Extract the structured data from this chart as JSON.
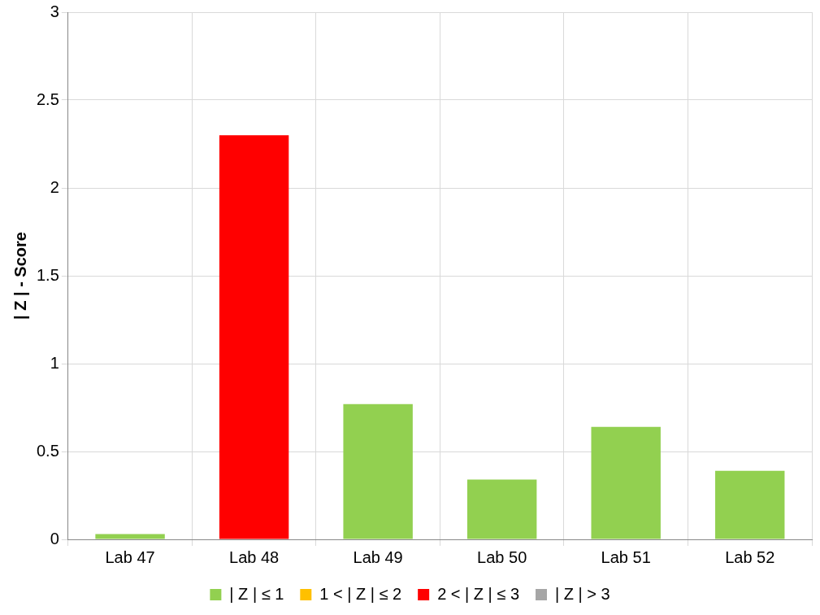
{
  "chart_data": {
    "type": "bar",
    "ylabel": "| Z | - Score",
    "categories": [
      "Lab 47",
      "Lab 48",
      "Lab 49",
      "Lab 50",
      "Lab 51",
      "Lab 52"
    ],
    "stacked": true,
    "series": [
      {
        "name": "| Z | ≤ 1",
        "color": "#92d050",
        "values": [
          0.03,
          null,
          0.77,
          0.34,
          0.64,
          0.39
        ]
      },
      {
        "name": "1 < | Z | ≤ 2",
        "color": "#ffc000",
        "values": [
          null,
          null,
          null,
          null,
          null,
          null
        ]
      },
      {
        "name": "2 < | Z | ≤ 3",
        "color": "#ff0000",
        "values": [
          null,
          2.3,
          null,
          null,
          null,
          null
        ]
      },
      {
        "name": "| Z | > 3",
        "color": "#a6a6a6",
        "values": [
          null,
          null,
          null,
          null,
          null,
          null
        ]
      }
    ],
    "ylim": [
      0,
      3
    ],
    "yticks": [
      0,
      0.5,
      1,
      1.5,
      2,
      2.5,
      3
    ],
    "grid": true,
    "legend": "bottom"
  }
}
